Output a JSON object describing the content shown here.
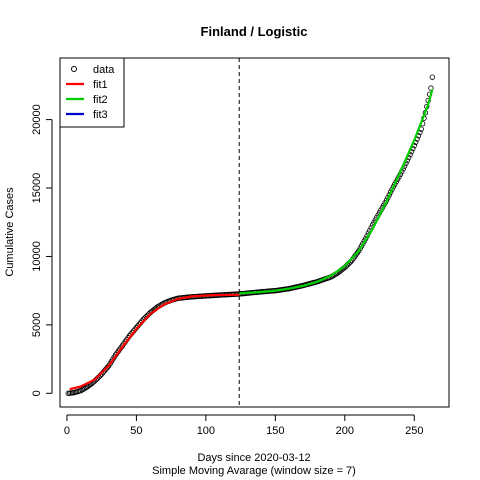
{
  "chart_data": {
    "type": "scatter",
    "title": "Finland / Logistic",
    "xlabel": "Days since 2020-03-12",
    "subtitle": "Simple Moving Avarage (window size = 7)",
    "ylabel": "Cumulative Cases",
    "xlim": [
      -5,
      275
    ],
    "ylim": [
      -1000,
      24500
    ],
    "xticks": [
      0,
      50,
      100,
      150,
      200,
      250
    ],
    "yticks": [
      0,
      5000,
      10000,
      15000,
      20000
    ],
    "vline_x": 124,
    "legend": {
      "position": "top-left",
      "entries": [
        {
          "label": "data",
          "kind": "point",
          "color": "#000000"
        },
        {
          "label": "fit1",
          "kind": "line",
          "color": "#ff0000"
        },
        {
          "label": "fit2",
          "kind": "line",
          "color": "#00cd00"
        },
        {
          "label": "fit3",
          "kind": "line",
          "color": "#0000cd"
        }
      ]
    },
    "data_points": {
      "x_start": 1,
      "x_end": 263,
      "anchors": [
        [
          1,
          0
        ],
        [
          5,
          50
        ],
        [
          10,
          200
        ],
        [
          15,
          500
        ],
        [
          20,
          900
        ],
        [
          25,
          1400
        ],
        [
          30,
          2000
        ],
        [
          35,
          2800
        ],
        [
          40,
          3500
        ],
        [
          45,
          4200
        ],
        [
          50,
          4800
        ],
        [
          55,
          5400
        ],
        [
          60,
          5900
        ],
        [
          65,
          6300
        ],
        [
          70,
          6600
        ],
        [
          75,
          6800
        ],
        [
          80,
          6950
        ],
        [
          90,
          7050
        ],
        [
          100,
          7120
        ],
        [
          110,
          7180
        ],
        [
          124,
          7260
        ],
        [
          140,
          7420
        ],
        [
          150,
          7500
        ],
        [
          160,
          7650
        ],
        [
          170,
          7880
        ],
        [
          180,
          8150
        ],
        [
          190,
          8500
        ],
        [
          195,
          8800
        ],
        [
          200,
          9200
        ],
        [
          205,
          9700
        ],
        [
          210,
          10400
        ],
        [
          215,
          11300
        ],
        [
          220,
          12300
        ],
        [
          225,
          13200
        ],
        [
          230,
          14100
        ],
        [
          235,
          15100
        ],
        [
          240,
          16000
        ],
        [
          245,
          17000
        ],
        [
          250,
          18100
        ],
        [
          255,
          19300
        ],
        [
          258,
          20500
        ],
        [
          260,
          21400
        ],
        [
          262,
          22300
        ],
        [
          263,
          23100
        ]
      ]
    },
    "series": [
      {
        "name": "fit1",
        "color": "#ff0000",
        "points": [
          [
            2,
            300
          ],
          [
            10,
            500
          ],
          [
            20,
            1000
          ],
          [
            30,
            2000
          ],
          [
            40,
            3400
          ],
          [
            50,
            4700
          ],
          [
            60,
            5800
          ],
          [
            70,
            6500
          ],
          [
            80,
            6900
          ],
          [
            90,
            7080
          ],
          [
            100,
            7150
          ],
          [
            110,
            7180
          ],
          [
            124,
            7200
          ]
        ]
      },
      {
        "name": "fit2",
        "color": "#00cd00",
        "points": [
          [
            124,
            7300
          ],
          [
            140,
            7400
          ],
          [
            150,
            7500
          ],
          [
            160,
            7650
          ],
          [
            170,
            7850
          ],
          [
            180,
            8150
          ],
          [
            190,
            8600
          ],
          [
            200,
            9300
          ],
          [
            210,
            10400
          ],
          [
            220,
            12000
          ],
          [
            230,
            14000
          ],
          [
            240,
            16200
          ],
          [
            250,
            18500
          ],
          [
            260,
            21100
          ],
          [
            263,
            22200
          ]
        ]
      }
    ]
  }
}
